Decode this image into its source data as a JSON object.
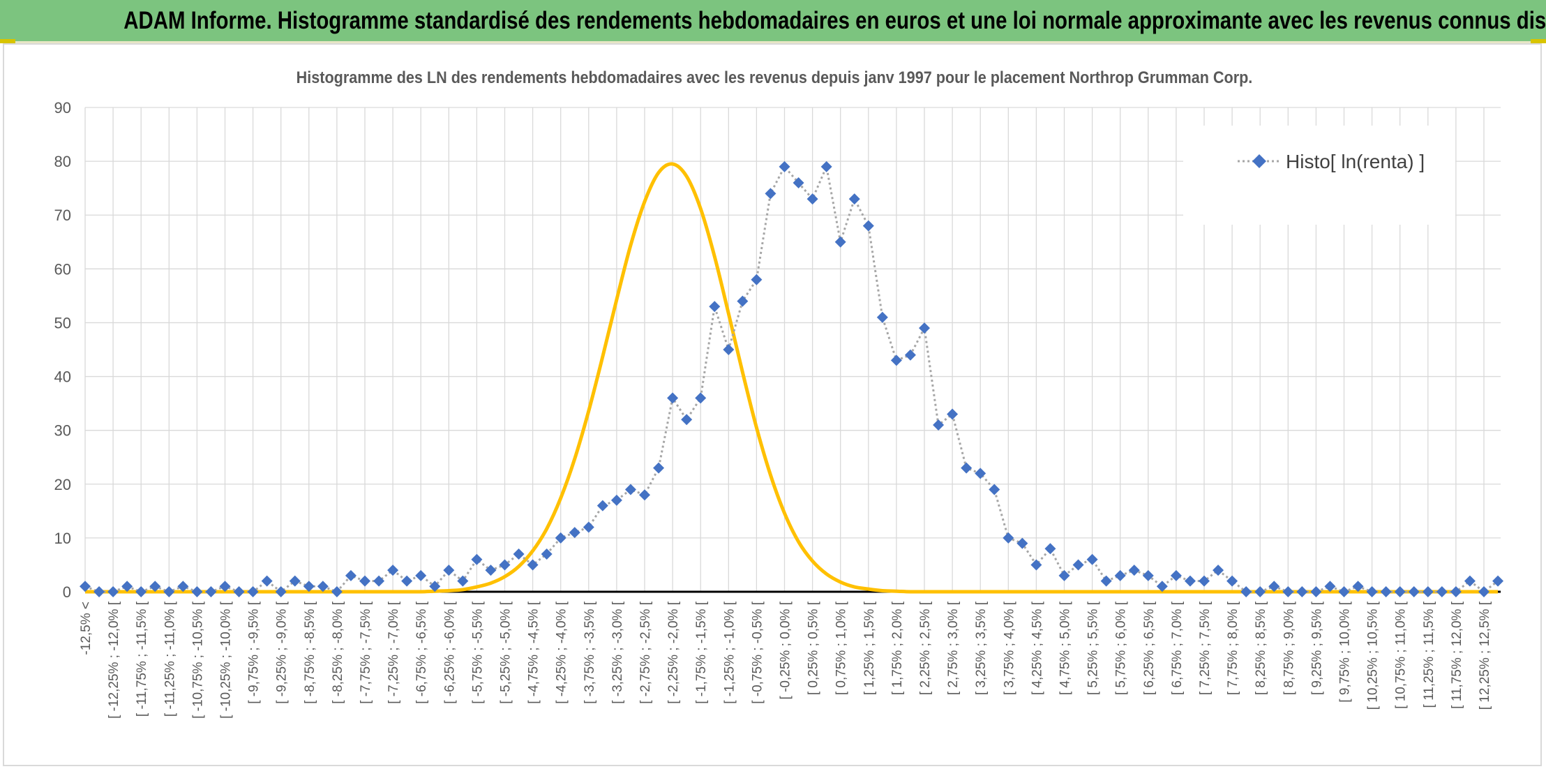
{
  "banner": {
    "title": "ADAM Informe. Histogramme standardisé des rendements hebdomadaires en euros et une loi normale approximante avec les revenus connus distribués"
  },
  "colors": {
    "banner_bg": "#7cc47f",
    "series_marker": "#4472c4",
    "series_line": "#a6a6a6",
    "normal_curve": "#ffc000",
    "grid": "#d9d9d9"
  },
  "chart_data": {
    "type": "line",
    "title": "Histogramme des LN des rendements hebdomadaires avec les revenus depuis janv 1997 pour le placement Northrop Grumman Corp.",
    "xlabel": "",
    "ylabel": "",
    "ylim": [
      0,
      90
    ],
    "yticks": [
      0,
      10,
      20,
      30,
      40,
      50,
      60,
      70,
      80,
      90
    ],
    "grid": true,
    "legend_position": "top-right",
    "categories": [
      "-12,5% <",
      "[ -12,25% ; -12,0% [",
      "[ -11,75% ; -11,5% [",
      "[ -11,25% ; -11,0% [",
      "[ -10,75% ; -10,5% [",
      "[ -10,25% ; -10,0% [",
      "[ -9,75% ; -9,5% [",
      "[ -9,25% ; -9,0% [",
      "[ -8,75% ; -8,5% [",
      "[ -8,25% ; -8,0% [",
      "[ -7,75% ; -7,5% [",
      "[ -7,25% ; -7,0% [",
      "[ -6,75% ; -6,5% [",
      "[ -6,25% ; -6,0% [",
      "[ -5,75% ; -5,5% [",
      "[ -5,25% ; -5,0% [",
      "[ -4,75% ; -4,5% [",
      "[ -4,25% ; -4,0% [",
      "[ -3,75% ; -3,5% [",
      "[ -3,25% ; -3,0% [",
      "[ -2,75% ; -2,5% [",
      "[ -2,25% ; -2,0% [",
      "[ -1,75% ; -1,5% [",
      "[ -1,25% ; -1,0% [",
      "[ -0,75% ; -0,5% [",
      "[ -0,25% ; 0,0% [",
      "[ 0,25% ; 0,5% [",
      "[ 0,75% ; 1,0% [",
      "[ 1,25% ; 1,5% [",
      "[ 1,75% ; 2,0% [",
      "[ 2,25% ; 2,5% [",
      "[ 2,75% ; 3,0% [",
      "[ 3,25% ; 3,5% [",
      "[ 3,75% ; 4,0% [",
      "[ 4,25% ; 4,5% [",
      "[ 4,75% ; 5,0% [",
      "[ 5,25% ; 5,5% [",
      "[ 5,75% ; 6,0% [",
      "[ 6,25% ; 6,5% [",
      "[ 6,75% ; 7,0% [",
      "[ 7,25% ; 7,5% [",
      "[ 7,75% ; 8,0% [",
      "[ 8,25% ; 8,5% [",
      "[ 8,75% ; 9,0% [",
      "[ 9,25% ; 9,5% [",
      "[ 9,75% ; 10,0% [",
      "[ 10,25% ; 10,5% [",
      "[ 10,75% ; 11,0% [",
      "[ 11,25% ; 11,5% [",
      "[ 11,75% ; 12,0% [",
      "[ 12,25% ; 12,5% ["
    ],
    "bins": [
      "-12,5% <",
      "-12,5%",
      "-12,25%",
      "-12,0%",
      "-11,75%",
      "-11,5%",
      "-11,25%",
      "-11,0%",
      "-10,75%",
      "-10,5%",
      "-10,25%",
      "-10,0%",
      "-9,75%",
      "-9,5%",
      "-9,25%",
      "-9,0%",
      "-8,75%",
      "-8,5%",
      "-8,25%",
      "-8,0%",
      "-7,75%",
      "-7,5%",
      "-7,25%",
      "-7,0%",
      "-6,75%",
      "-6,5%",
      "-6,25%",
      "-6,0%",
      "-5,75%",
      "-5,5%",
      "-5,25%",
      "-5,0%",
      "-4,75%",
      "-4,5%",
      "-4,25%",
      "-4,0%",
      "-3,75%",
      "-3,5%",
      "-3,25%",
      "-3,0%",
      "-2,75%",
      "-2,5%",
      "-2,25%",
      "-2,0%",
      "-1,75%",
      "-1,5%",
      "-1,25%",
      "-1,0%",
      "-0,75%",
      "-0,5%",
      "-0,25%",
      "0,0%",
      "0,25%",
      "0,5%",
      "0,75%",
      "1,0%",
      "1,25%",
      "1,5%",
      "1,75%",
      "2,0%",
      "2,25%",
      "2,5%",
      "2,75%",
      "3,0%",
      "3,25%",
      "3,5%",
      "3,75%",
      "4,0%",
      "4,25%",
      "4,5%",
      "4,75%",
      "5,0%",
      "5,25%",
      "5,5%",
      "5,75%",
      "6,0%",
      "6,25%",
      "6,5%",
      "6,75%",
      "7,0%",
      "7,25%",
      "7,5%",
      "7,75%",
      "8,0%",
      "8,25%",
      "8,5%",
      "8,75%",
      "9,0%",
      "9,25%",
      "9,5%",
      "9,75%",
      "10,0%",
      "10,25%",
      "10,5%",
      "10,75%",
      "11,0%",
      "11,25%",
      "11,5%",
      "11,75%",
      "12,0%",
      "12,25%",
      "12,5%"
    ],
    "series": [
      {
        "name": "Histo[ ln(renta) ]",
        "style": "dotted line with diamond markers",
        "values": [
          1,
          0,
          0,
          1,
          0,
          1,
          0,
          1,
          0,
          0,
          1,
          0,
          0,
          2,
          0,
          2,
          1,
          1,
          0,
          3,
          2,
          2,
          4,
          2,
          3,
          1,
          4,
          2,
          6,
          4,
          5,
          7,
          5,
          7,
          10,
          11,
          12,
          16,
          17,
          19,
          18,
          23,
          36,
          32,
          36,
          53,
          45,
          54,
          58,
          74,
          79,
          76,
          73,
          79,
          65,
          73,
          68,
          51,
          43,
          44,
          49,
          31,
          33,
          23,
          22,
          19,
          10,
          9,
          5,
          8,
          3,
          5,
          6,
          2,
          3,
          4,
          3,
          1,
          3,
          2,
          2,
          4,
          2,
          0,
          0,
          1,
          0,
          0,
          0,
          1,
          0,
          1,
          0,
          0,
          0,
          0,
          0,
          0,
          0,
          2,
          0,
          2
        ]
      },
      {
        "name": "",
        "style": "smooth normal approximation curve",
        "values": [
          0,
          0,
          0,
          0,
          0,
          0,
          0,
          0,
          0,
          0,
          0,
          0,
          0,
          0,
          0,
          0,
          0,
          0,
          0,
          0,
          0,
          0,
          0,
          0,
          0,
          0.1,
          0.2,
          0.4,
          0.9,
          1.6,
          2.8,
          4.7,
          7.6,
          11.7,
          17.4,
          24.7,
          33.6,
          43.7,
          54.3,
          64.4,
          72.5,
          77.9,
          79.5,
          77.2,
          71.2,
          62.3,
          51.7,
          40.8,
          30.5,
          21.7,
          14.6,
          9.3,
          5.7,
          3.3,
          1.8,
          0.9,
          0.5,
          0.2,
          0.1,
          0,
          0,
          0,
          0,
          0,
          0,
          0,
          0,
          0,
          0,
          0,
          0,
          0,
          0,
          0,
          0,
          0,
          0,
          0,
          0,
          0,
          0,
          0,
          0,
          0,
          0,
          0,
          0,
          0,
          0,
          0,
          0,
          0,
          0,
          0,
          0,
          0,
          0,
          0,
          0,
          0,
          0,
          0
        ]
      }
    ]
  }
}
